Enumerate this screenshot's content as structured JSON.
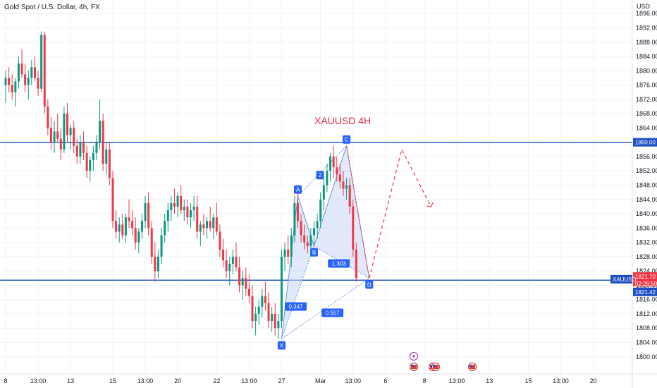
{
  "header": {
    "symbol_desc": "Gold Spot / U.S. Dollar, 4h, FX",
    "currency": "USD"
  },
  "chart_data": {
    "type": "candlestick",
    "title": "XAUUSD 4H",
    "xlabel": "",
    "ylabel": "",
    "ylim": [
      1797,
      1899
    ],
    "y_ticks": [
      1800,
      1804,
      1808,
      1812,
      1816,
      1820,
      1824,
      1828,
      1832,
      1836,
      1840,
      1844,
      1848,
      1852,
      1856,
      1860,
      1864,
      1868,
      1872,
      1876,
      1880,
      1884,
      1888,
      1892,
      1896
    ],
    "y_tick_labels": [
      "1800.00",
      "1804.00",
      "1808.00",
      "1812.00",
      "1816.00",
      "1820.00",
      "1824.00",
      "1828.00",
      "1832.00",
      "1836.00",
      "1840.00",
      "1844.00",
      "1848.00",
      "1852.00",
      "1856.00",
      "1860.00",
      "1864.00",
      "1868.00",
      "1872.00",
      "1876.00",
      "1880.00",
      "1884.00",
      "1888.00",
      "1892.00",
      "1896.00"
    ],
    "x_tick_labels": [
      "8",
      "13:00",
      "13",
      "15",
      "13:00",
      "20",
      "22",
      "13:00",
      "27",
      "Mar",
      "13:00",
      "6",
      "8",
      "13:00",
      "13",
      "15",
      "13:00",
      "20"
    ],
    "x_tick_bar_index": [
      0,
      10,
      20,
      33,
      43,
      53,
      65,
      75,
      85,
      97,
      107,
      117,
      129,
      139,
      149,
      161,
      171,
      181
    ],
    "bar_count_visible": 186,
    "candles_ohlc": [
      [
        1876,
        1880,
        1871,
        1878
      ],
      [
        1878,
        1881,
        1874,
        1876
      ],
      [
        1876,
        1879,
        1872,
        1874
      ],
      [
        1874,
        1878,
        1870,
        1877
      ],
      [
        1877,
        1884,
        1875,
        1882
      ],
      [
        1882,
        1886,
        1878,
        1879
      ],
      [
        1879,
        1882,
        1874,
        1876
      ],
      [
        1876,
        1880,
        1872,
        1878
      ],
      [
        1878,
        1883,
        1876,
        1881
      ],
      [
        1881,
        1884,
        1877,
        1878
      ],
      [
        1878,
        1880,
        1873,
        1875
      ],
      [
        1875,
        1891,
        1874,
        1890
      ],
      [
        1890,
        1891,
        1868,
        1870
      ],
      [
        1870,
        1872,
        1862,
        1864
      ],
      [
        1864,
        1867,
        1858,
        1860
      ],
      [
        1860,
        1866,
        1857,
        1863
      ],
      [
        1863,
        1868,
        1860,
        1861
      ],
      [
        1861,
        1864,
        1855,
        1858
      ],
      [
        1858,
        1870,
        1857,
        1868
      ],
      [
        1868,
        1871,
        1860,
        1862
      ],
      [
        1862,
        1865,
        1858,
        1864
      ],
      [
        1864,
        1866,
        1857,
        1859
      ],
      [
        1859,
        1861,
        1854,
        1856
      ],
      [
        1856,
        1862,
        1854,
        1860
      ],
      [
        1860,
        1863,
        1855,
        1857
      ],
      [
        1857,
        1859,
        1850,
        1852
      ],
      [
        1852,
        1856,
        1849,
        1855
      ],
      [
        1855,
        1859,
        1852,
        1857
      ],
      [
        1857,
        1862,
        1855,
        1860
      ],
      [
        1860,
        1872,
        1858,
        1866
      ],
      [
        1866,
        1868,
        1852,
        1854
      ],
      [
        1854,
        1860,
        1851,
        1858
      ],
      [
        1858,
        1860,
        1848,
        1850
      ],
      [
        1850,
        1852,
        1836,
        1838
      ],
      [
        1838,
        1841,
        1833,
        1835
      ],
      [
        1835,
        1839,
        1832,
        1837
      ],
      [
        1837,
        1840,
        1833,
        1834
      ],
      [
        1834,
        1840,
        1832,
        1839
      ],
      [
        1839,
        1844,
        1836,
        1838
      ],
      [
        1838,
        1841,
        1834,
        1836
      ],
      [
        1836,
        1839,
        1830,
        1832
      ],
      [
        1832,
        1836,
        1829,
        1835
      ],
      [
        1835,
        1840,
        1833,
        1838
      ],
      [
        1838,
        1845,
        1836,
        1843
      ],
      [
        1843,
        1846,
        1834,
        1836
      ],
      [
        1836,
        1838,
        1826,
        1828
      ],
      [
        1828,
        1832,
        1821,
        1824
      ],
      [
        1824,
        1830,
        1822,
        1828
      ],
      [
        1828,
        1836,
        1826,
        1834
      ],
      [
        1834,
        1840,
        1832,
        1838
      ],
      [
        1838,
        1843,
        1835,
        1841
      ],
      [
        1841,
        1845,
        1838,
        1843
      ],
      [
        1843,
        1847,
        1840,
        1842
      ],
      [
        1842,
        1846,
        1839,
        1845
      ],
      [
        1845,
        1848,
        1840,
        1841
      ],
      [
        1841,
        1844,
        1838,
        1842
      ],
      [
        1842,
        1844,
        1837,
        1839
      ],
      [
        1839,
        1843,
        1836,
        1841
      ],
      [
        1841,
        1845,
        1838,
        1842
      ],
      [
        1842,
        1845,
        1833,
        1835
      ],
      [
        1835,
        1838,
        1831,
        1837
      ],
      [
        1837,
        1840,
        1834,
        1836
      ],
      [
        1836,
        1839,
        1833,
        1838
      ],
      [
        1838,
        1842,
        1835,
        1836
      ],
      [
        1836,
        1840,
        1833,
        1839
      ],
      [
        1839,
        1843,
        1834,
        1835
      ],
      [
        1835,
        1837,
        1828,
        1830
      ],
      [
        1830,
        1833,
        1825,
        1827
      ],
      [
        1827,
        1830,
        1822,
        1824
      ],
      [
        1824,
        1828,
        1820,
        1826
      ],
      [
        1826,
        1830,
        1823,
        1828
      ],
      [
        1828,
        1832,
        1824,
        1825
      ],
      [
        1825,
        1828,
        1818,
        1820
      ],
      [
        1820,
        1824,
        1816,
        1822
      ],
      [
        1822,
        1825,
        1817,
        1819
      ],
      [
        1819,
        1823,
        1815,
        1817
      ],
      [
        1817,
        1820,
        1808,
        1810
      ],
      [
        1810,
        1814,
        1806,
        1812
      ],
      [
        1812,
        1816,
        1809,
        1814
      ],
      [
        1814,
        1819,
        1811,
        1817
      ],
      [
        1817,
        1821,
        1813,
        1815
      ],
      [
        1815,
        1818,
        1808,
        1810
      ],
      [
        1810,
        1814,
        1807,
        1812
      ],
      [
        1812,
        1815,
        1806,
        1808
      ],
      [
        1808,
        1812,
        1805,
        1810
      ],
      [
        1810,
        1830,
        1808,
        1828
      ],
      [
        1828,
        1832,
        1824,
        1830
      ],
      [
        1830,
        1834,
        1826,
        1828
      ],
      [
        1828,
        1836,
        1825,
        1834
      ],
      [
        1834,
        1845,
        1832,
        1843
      ],
      [
        1843,
        1846,
        1836,
        1838
      ],
      [
        1838,
        1840,
        1832,
        1834
      ],
      [
        1834,
        1837,
        1830,
        1832
      ],
      [
        1832,
        1834,
        1829,
        1831
      ],
      [
        1831,
        1836,
        1828,
        1834
      ],
      [
        1834,
        1838,
        1831,
        1836
      ],
      [
        1836,
        1840,
        1833,
        1838
      ],
      [
        1838,
        1846,
        1836,
        1844
      ],
      [
        1844,
        1850,
        1841,
        1848
      ],
      [
        1848,
        1854,
        1846,
        1852
      ],
      [
        1852,
        1857,
        1849,
        1856
      ],
      [
        1856,
        1859,
        1850,
        1853
      ],
      [
        1853,
        1856,
        1849,
        1851
      ],
      [
        1851,
        1854,
        1847,
        1849
      ],
      [
        1849,
        1852,
        1845,
        1847
      ],
      [
        1847,
        1850,
        1844,
        1848
      ],
      [
        1848,
        1850,
        1840,
        1842
      ],
      [
        1842,
        1844,
        1828,
        1830
      ],
      [
        1830,
        1832,
        1821,
        1822
      ]
    ],
    "harmonic_pattern": {
      "points": [
        {
          "label": "X",
          "price": 1805
        },
        {
          "label": "A",
          "price": 1845
        },
        {
          "label": "B",
          "price": 1831
        },
        {
          "label": "C",
          "price": 1859
        },
        {
          "label": "D",
          "price": 1822
        }
      ],
      "ratios": [
        "0.347",
        "0.557",
        "1.303"
      ],
      "leg_label": "2"
    },
    "horizontal_lines": [
      1860.0,
      1821.42
    ],
    "projection_prices": [
      1822,
      1858,
      1842
    ],
    "price_labels": {
      "resistance": "1860.00",
      "last_symbol": "XAUUSD",
      "last_price": "1821.70",
      "countdown": "02:26:50",
      "support": "1821.42"
    },
    "colors": {
      "up": "#089981",
      "down": "#f23645",
      "hline": "#1e4fc2",
      "pattern_fill": "#c9d7f5",
      "pattern_line": "#6f92e0",
      "badge": "#2962ff",
      "projection": "#f23645",
      "title": "#e0294a"
    }
  },
  "events": {
    "icons": [
      "lightning-icon",
      "us-flag-icon",
      "us-flag-icon",
      "us-flag-icon",
      "us-flag-icon"
    ]
  }
}
